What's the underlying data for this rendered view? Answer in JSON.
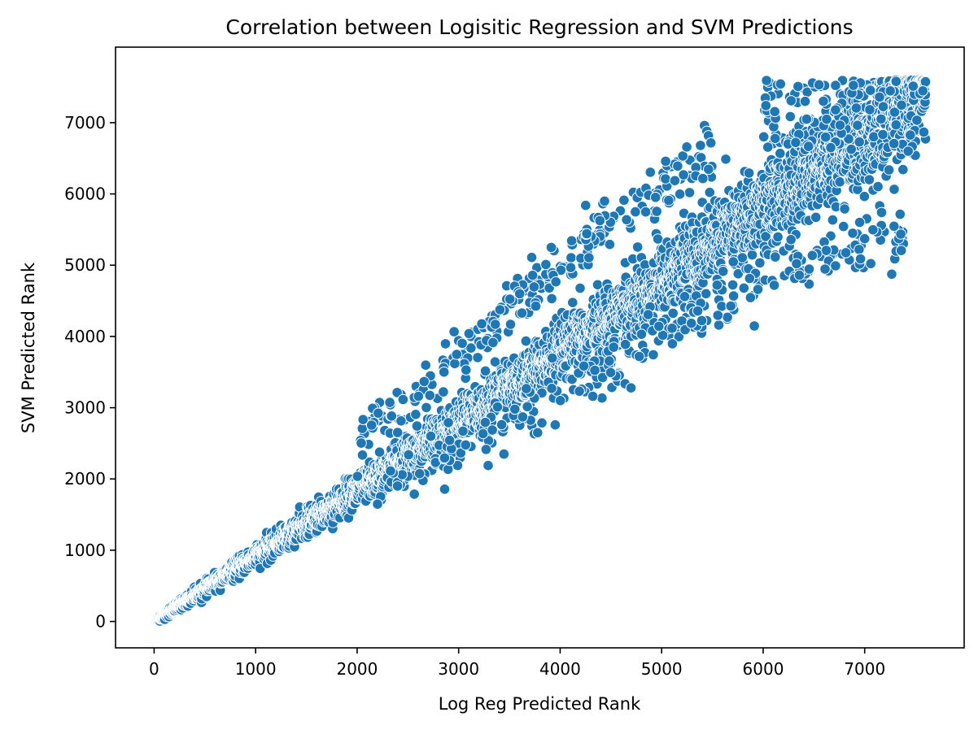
{
  "chart_data": {
    "type": "scatter",
    "title": "Correlation between Logisitic Regression and SVM Predictions",
    "xlabel": "Log Reg Predicted Rank",
    "ylabel": "SVM Predicted Rank",
    "xlim": [
      -380,
      7980
    ],
    "ylim": [
      -370,
      8060
    ],
    "xticks": [
      0,
      1000,
      2000,
      3000,
      4000,
      5000,
      6000,
      7000
    ],
    "yticks": [
      0,
      1000,
      2000,
      3000,
      4000,
      5000,
      6000,
      7000
    ],
    "grid": false,
    "legend": "none",
    "marker_color": "#1f77b4",
    "marker_edge_color": "#ffffff",
    "series": [
      {
        "points_note_count": 7600,
        "x_range": [
          0,
          7600
        ],
        "y_range": [
          0,
          7600
        ],
        "sample_points": [
          [
            0,
            0
          ],
          [
            500,
            450
          ],
          [
            1000,
            950
          ],
          [
            1500,
            1450
          ],
          [
            2000,
            1950
          ],
          [
            2500,
            2450
          ],
          [
            3000,
            2950
          ],
          [
            3500,
            3450
          ],
          [
            4000,
            3950
          ],
          [
            4500,
            4400
          ],
          [
            5000,
            4900
          ],
          [
            5500,
            5350
          ],
          [
            6000,
            5900
          ],
          [
            6500,
            6400
          ],
          [
            7000,
            6900
          ],
          [
            7600,
            7600
          ],
          [
            2100,
            2700
          ],
          [
            3000,
            3850
          ],
          [
            3600,
            4800
          ],
          [
            4000,
            5300
          ],
          [
            4400,
            6100
          ],
          [
            4700,
            6600
          ],
          [
            5100,
            7000
          ],
          [
            5400,
            7150
          ],
          [
            2300,
            1850
          ],
          [
            3100,
            2400
          ],
          [
            3500,
            2850
          ],
          [
            4100,
            3200
          ],
          [
            4400,
            3400
          ],
          [
            4700,
            3650
          ],
          [
            5300,
            4150
          ],
          [
            5600,
            4450
          ],
          [
            6200,
            5050
          ],
          [
            6500,
            5050
          ],
          [
            6900,
            5350
          ],
          [
            7100,
            5650
          ],
          [
            6600,
            7450
          ],
          [
            6850,
            7520
          ],
          [
            6200,
            7380
          ],
          [
            6300,
            7420
          ]
        ]
      }
    ]
  }
}
